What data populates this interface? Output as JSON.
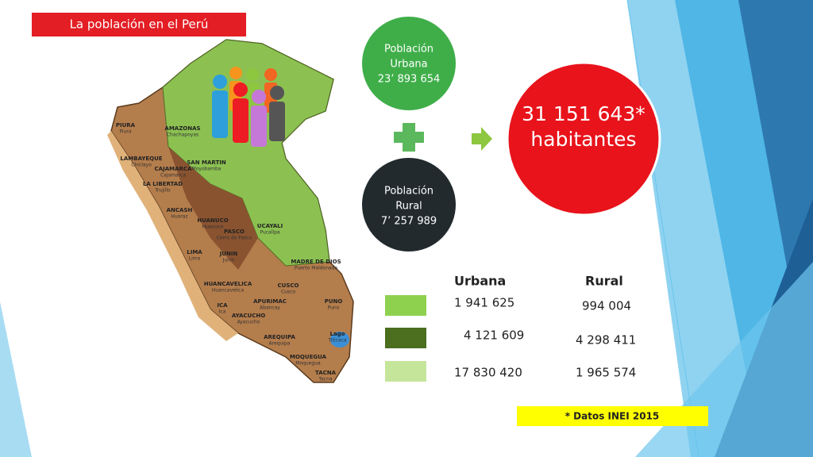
{
  "title": "La población en el Perú",
  "urban": {
    "lines": [
      "Población",
      "Urbana",
      "23’ 893 654"
    ]
  },
  "rural": {
    "lines": [
      "Población",
      "Rural",
      "7’ 257 989"
    ]
  },
  "total": {
    "lines": [
      "31 151 643*",
      "habitantes"
    ]
  },
  "table": {
    "headers": [
      "Urbana",
      "Rural"
    ],
    "rows": [
      [
        "1 941 625",
        "994 004"
      ],
      [
        "4 121 609",
        "4 298 411"
      ],
      [
        "17 830 420",
        "1 965 574"
      ]
    ]
  },
  "note": "* Datos INEI 2015",
  "map_labels": [
    {
      "name": "PIURA",
      "capital": "Piura"
    },
    {
      "name": "AMAZONAS",
      "capital": "Chachapoyas"
    },
    {
      "name": "LAMBAYEQUE",
      "capital": "Chiclayo"
    },
    {
      "name": "CAJAMARCA",
      "capital": "Cajamarca"
    },
    {
      "name": "LA LIBERTAD",
      "capital": "Trujillo"
    },
    {
      "name": "SAN MARTIN",
      "capital": "Moyobamba"
    },
    {
      "name": "ANCASH",
      "capital": "Huaraz"
    },
    {
      "name": "HUANUCO",
      "capital": "Huanuco"
    },
    {
      "name": "PASCO",
      "capital": "Cerro de Pasco"
    },
    {
      "name": "UCAYALI",
      "capital": "Pucallpa"
    },
    {
      "name": "LIMA",
      "capital": "Lima"
    },
    {
      "name": "JUNIN",
      "capital": "Junin"
    },
    {
      "name": "MADRE DE DIOS",
      "capital": "Puerto Maldonado"
    },
    {
      "name": "HUANCAVELICA",
      "capital": "Huancavelica"
    },
    {
      "name": "CUSCO",
      "capital": "Cusco"
    },
    {
      "name": "ICA",
      "capital": "Ica"
    },
    {
      "name": "APURIMAC",
      "capital": "Abancay"
    },
    {
      "name": "AYACUCHO",
      "capital": "Ayacucho"
    },
    {
      "name": "PUNO",
      "capital": "Puno"
    },
    {
      "name": "AREQUIPA",
      "capital": "Arequipa"
    },
    {
      "name": "Lago",
      "capital": "Titicaca"
    },
    {
      "name": "MOQUEGUA",
      "capital": "Moquegua"
    },
    {
      "name": "TACNA",
      "capital": "Tacna"
    }
  ]
}
